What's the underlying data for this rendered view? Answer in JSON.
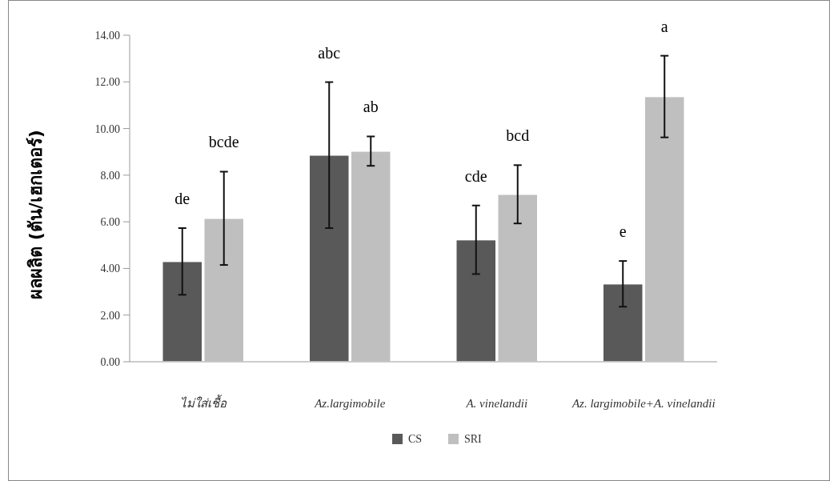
{
  "chart_data": {
    "type": "bar",
    "ylabel": "ผลผลิต (ตัน/เฮกเตอร์)",
    "categories": [
      "ไม่ใส่เชื้อ",
      "Az.largimobile",
      "A. vinelandii",
      "Az. largimobile+A. vinelandii"
    ],
    "series": [
      {
        "name": "CS",
        "color": "#595959",
        "values": [
          4.3,
          8.86,
          5.23,
          3.34
        ],
        "errors": [
          1.43,
          3.13,
          1.47,
          0.98
        ]
      },
      {
        "name": "SRI",
        "color": "#bfbfbf",
        "values": [
          6.15,
          9.03,
          7.18,
          11.37
        ],
        "errors": [
          2.0,
          0.63,
          1.25,
          1.75
        ]
      }
    ],
    "annotations": [
      "de",
      "bcde",
      "abc",
      "ab",
      "cde",
      "bcd",
      "e",
      "a"
    ],
    "ylim": [
      0,
      14
    ],
    "yticks": [
      {
        "value": 0,
        "label": "0.00"
      },
      {
        "value": 2,
        "label": "2.00"
      },
      {
        "value": 4,
        "label": "4.00"
      },
      {
        "value": 6,
        "label": "6.00"
      },
      {
        "value": 8,
        "label": "8.00"
      },
      {
        "value": 10,
        "label": "10.00"
      },
      {
        "value": 12,
        "label": "12.00"
      },
      {
        "value": 14,
        "label": "14.00"
      }
    ],
    "grid": false,
    "legend": "bottom"
  }
}
